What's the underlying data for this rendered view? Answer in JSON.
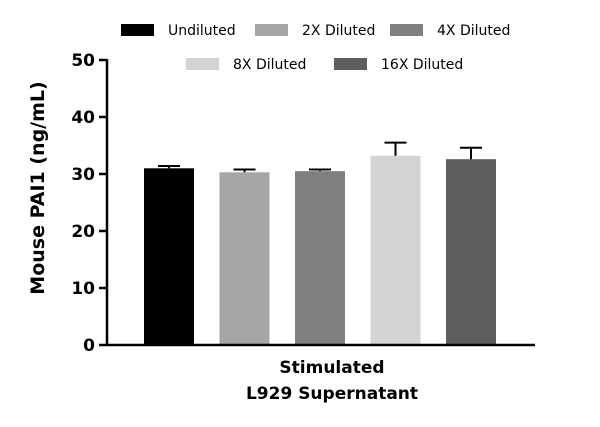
{
  "chart_data": {
    "type": "bar",
    "title": "",
    "category": [
      "Stimulated",
      "L929 Supernatant"
    ],
    "ylabel": "Mouse PAI1 (ng/mL)",
    "ylim": [
      0,
      50
    ],
    "yticks": [
      "0",
      "10",
      "20",
      "30",
      "40",
      "50"
    ],
    "legend_position": "top",
    "series": [
      {
        "name": "Undiluted",
        "value": 31.0,
        "error": 0.4,
        "color": "#000000"
      },
      {
        "name": "2X Diluted",
        "value": 30.3,
        "error": 0.5,
        "color": "#a6a6a6"
      },
      {
        "name": "4X Diluted",
        "value": 30.5,
        "error": 0.3,
        "color": "#808080"
      },
      {
        "name": "8X Diluted",
        "value": 33.2,
        "error": 2.3,
        "color": "#d4d4d4"
      },
      {
        "name": "16X Diluted",
        "value": 32.6,
        "error": 2.0,
        "color": "#5e5e5e"
      }
    ]
  }
}
